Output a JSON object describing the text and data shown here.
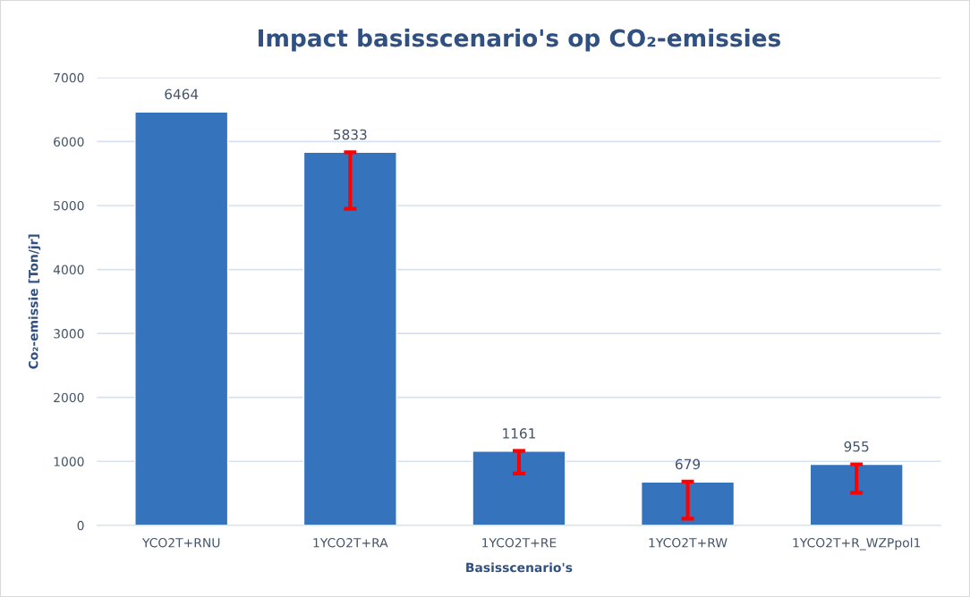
{
  "chart_data": {
    "type": "bar",
    "title": "Impact basisscenario's op CO₂-emissies",
    "xlabel": "Basisscenario's",
    "ylabel": "Co₂-emissie [Ton/jr]",
    "categories": [
      "YCO2T+RNU",
      "1YCO2T+RA",
      "1YCO2T+RE",
      "1YCO2T+RW",
      "1YCO2T+R_WZPpol1"
    ],
    "values": [
      6464,
      5833,
      1161,
      679,
      955
    ],
    "errors": [
      null,
      [
        4950,
        5833
      ],
      [
        810,
        1165
      ],
      [
        105,
        685
      ],
      [
        510,
        955
      ]
    ],
    "color": "#3673bd",
    "data_labels": true,
    "ylim": [
      0,
      7000
    ],
    "yticks": [
      0,
      1000,
      2000,
      3000,
      4000,
      5000,
      6000,
      7000
    ],
    "grid": "y"
  }
}
